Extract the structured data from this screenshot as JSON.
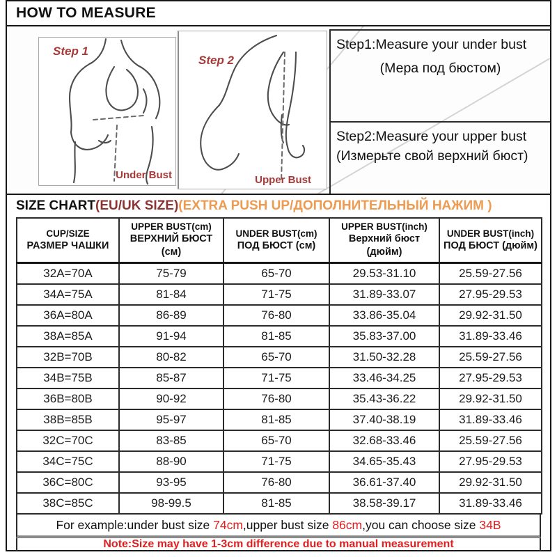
{
  "title": "HOW TO MEASURE",
  "illustrations": {
    "step1": {
      "label": "Step 1",
      "caption": "Under Bust"
    },
    "step2": {
      "label": "Step 2",
      "caption": "Upper Bust"
    }
  },
  "instructions": {
    "step1_en": "Step1:Measure your under bust",
    "step1_ru": "(Мера под бюстом)",
    "step2": "Step2:Measure your upper bust (Измерьте свой верхний бюст)"
  },
  "size_chart_title": {
    "black": "SIZE CHART",
    "maroon": "(EU/UK SIZE)",
    "orange": "(EXTRA PUSH UP/ДОПОЛНИТЕЛЬНЫЙ НАЖИМ )"
  },
  "table": {
    "headers": [
      {
        "en": "CUP/SIZE",
        "ru": "РАЗМЕР ЧАШКИ"
      },
      {
        "en": "UPPER BUST(cm)",
        "ru": "ВЕРХНИЙ БЮСТ (см)"
      },
      {
        "en": "UNDER BUST(cm)",
        "ru": "ПОД БЮСТ (см)"
      },
      {
        "en": "UPPER BUST(inch)",
        "ru": "Верхний бюст (дюйм)"
      },
      {
        "en": "UNDER BUST(inch)",
        "ru": "ПОД БЮСТ (дюйм)"
      }
    ],
    "rows": [
      [
        "32A=70A",
        "75-79",
        "65-70",
        "29.53-31.10",
        "25.59-27.56"
      ],
      [
        "34A=75A",
        "81-84",
        "71-75",
        "31.89-33.07",
        "27.95-29.53"
      ],
      [
        "36A=80A",
        "86-89",
        "76-80",
        "33.86-35.04",
        "29.92-31.50"
      ],
      [
        "38A=85A",
        "91-94",
        "81-85",
        "35.83-37.00",
        "31.89-33.46"
      ],
      [
        "32B=70B",
        "80-82",
        "65-70",
        "31.50-32.28",
        "25.59-27.56"
      ],
      [
        "34B=75B",
        "85-87",
        "71-75",
        "33.46-34.25",
        "27.95-29.53"
      ],
      [
        "36B=80B",
        "90-92",
        "76-80",
        "35.43-36.22",
        "29.92-31.50"
      ],
      [
        "38B=85B",
        "95-97",
        "81-85",
        "37.40-38.19",
        "31.89-33.46"
      ],
      [
        "32C=70C",
        "83-85",
        "65-70",
        "32.68-33.46",
        "25.59-27.56"
      ],
      [
        "34C=75C",
        "88-90",
        "71-75",
        "34.65-35.43",
        "27.95-29.53"
      ],
      [
        "36C=80C",
        "93-95",
        "76-80",
        "36.61-37.40",
        "29.92-31.50"
      ],
      [
        "38C=85C",
        "98-99.5",
        "81-85",
        "38.58-39.17",
        "31.89-33.46"
      ]
    ]
  },
  "footer": {
    "example_parts": [
      {
        "text": "For example:under bust size ",
        "highlight": false
      },
      {
        "text": "74cm",
        "highlight": true
      },
      {
        "text": ",upper bust size ",
        "highlight": false
      },
      {
        "text": "86cm",
        "highlight": true
      },
      {
        "text": ",you can choose size ",
        "highlight": false
      },
      {
        "text": "34B",
        "highlight": true
      }
    ],
    "note": "Note:Size may have 1-3cm difference due to manual measurement"
  },
  "colors": {
    "maroon": "#8a3533",
    "orange": "#ec9b50",
    "red": "#e02020",
    "label_red": "#a63a38"
  }
}
